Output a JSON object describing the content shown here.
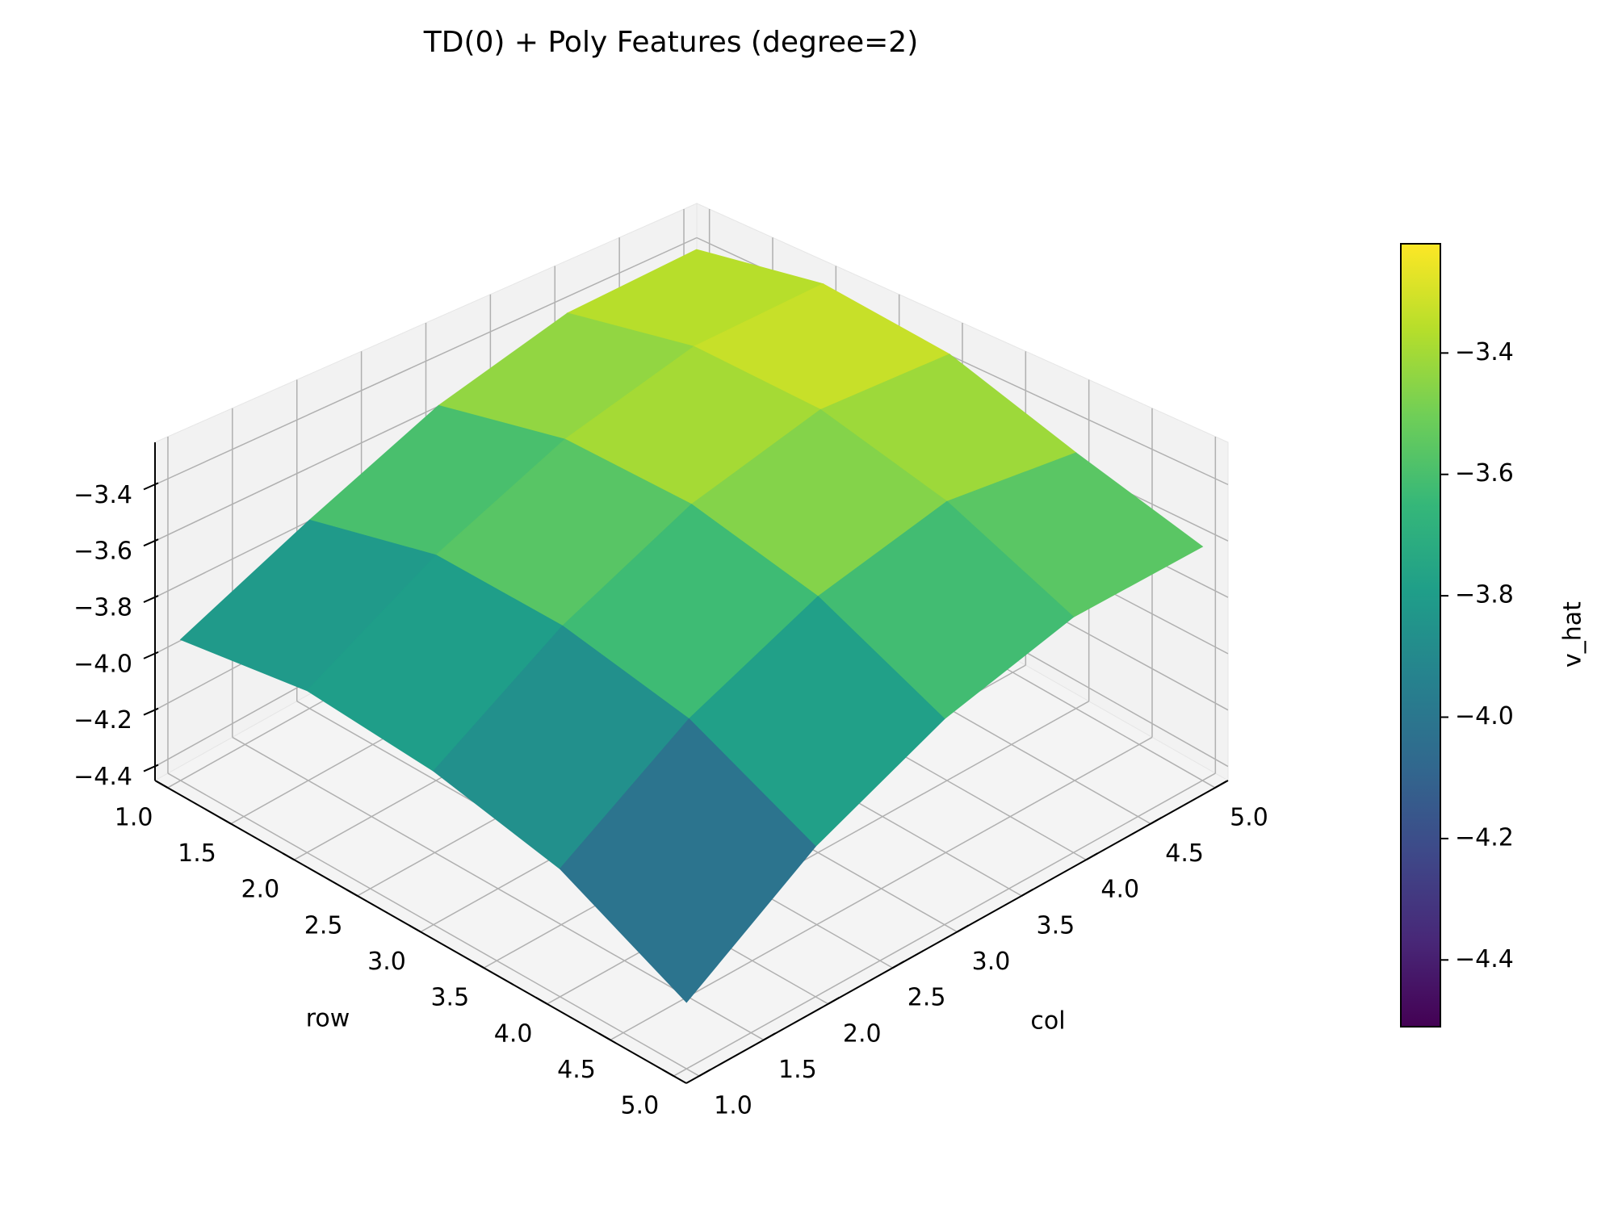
{
  "chart_data": {
    "type": "surface",
    "title": "TD(0) + Poly Features (degree=2)",
    "xlabel": "row",
    "ylabel": "col",
    "colorbar_label": "v_hat",
    "colormap": "viridis",
    "x": [
      1,
      2,
      3,
      4,
      5
    ],
    "y": [
      1,
      2,
      3,
      4,
      5
    ],
    "z": [
      [
        -3.95,
        -3.75,
        -3.55,
        -3.42,
        -3.4
      ],
      [
        -3.9,
        -3.65,
        -3.45,
        -3.32,
        -3.3
      ],
      [
        -3.95,
        -3.68,
        -3.47,
        -3.34,
        -3.35
      ],
      [
        -4.05,
        -3.78,
        -3.58,
        -3.46,
        -3.5
      ],
      [
        -4.25,
        -3.98,
        -3.78,
        -3.65,
        -3.62
      ]
    ],
    "xlim": [
      0.9,
      5.1
    ],
    "ylim": [
      0.9,
      5.1
    ],
    "zlim": [
      -4.45,
      -3.25
    ],
    "clim": [
      -4.51,
      -3.22
    ],
    "xticks": [
      {
        "value": 1,
        "label": "1.0"
      },
      {
        "value": 1.5,
        "label": "1.5"
      },
      {
        "value": 2,
        "label": "2.0"
      },
      {
        "value": 2.5,
        "label": "2.5"
      },
      {
        "value": 3,
        "label": "3.0"
      },
      {
        "value": 3.5,
        "label": "3.5"
      },
      {
        "value": 4,
        "label": "4.0"
      },
      {
        "value": 4.5,
        "label": "4.5"
      },
      {
        "value": 5,
        "label": "5.0"
      }
    ],
    "yticks": [
      {
        "value": 1,
        "label": "1.0"
      },
      {
        "value": 1.5,
        "label": "1.5"
      },
      {
        "value": 2,
        "label": "2.0"
      },
      {
        "value": 2.5,
        "label": "2.5"
      },
      {
        "value": 3,
        "label": "3.0"
      },
      {
        "value": 3.5,
        "label": "3.5"
      },
      {
        "value": 4,
        "label": "4.0"
      },
      {
        "value": 4.5,
        "label": "4.5"
      },
      {
        "value": 5,
        "label": "5.0"
      }
    ],
    "zticks": [
      {
        "value": -4.4,
        "label": "−4.4"
      },
      {
        "value": -4.2,
        "label": "−4.2"
      },
      {
        "value": -4.0,
        "label": "−4.0"
      },
      {
        "value": -3.8,
        "label": "−3.8"
      },
      {
        "value": -3.6,
        "label": "−3.6"
      },
      {
        "value": -3.4,
        "label": "−3.4"
      }
    ],
    "colorbar_ticks": [
      {
        "value": -4.4,
        "label": "−4.4"
      },
      {
        "value": -4.2,
        "label": "−4.2"
      },
      {
        "value": -4.0,
        "label": "−4.0"
      },
      {
        "value": -3.8,
        "label": "−3.8"
      },
      {
        "value": -3.6,
        "label": "−3.6"
      },
      {
        "value": -3.4,
        "label": "−3.4"
      }
    ],
    "grid": true
  }
}
